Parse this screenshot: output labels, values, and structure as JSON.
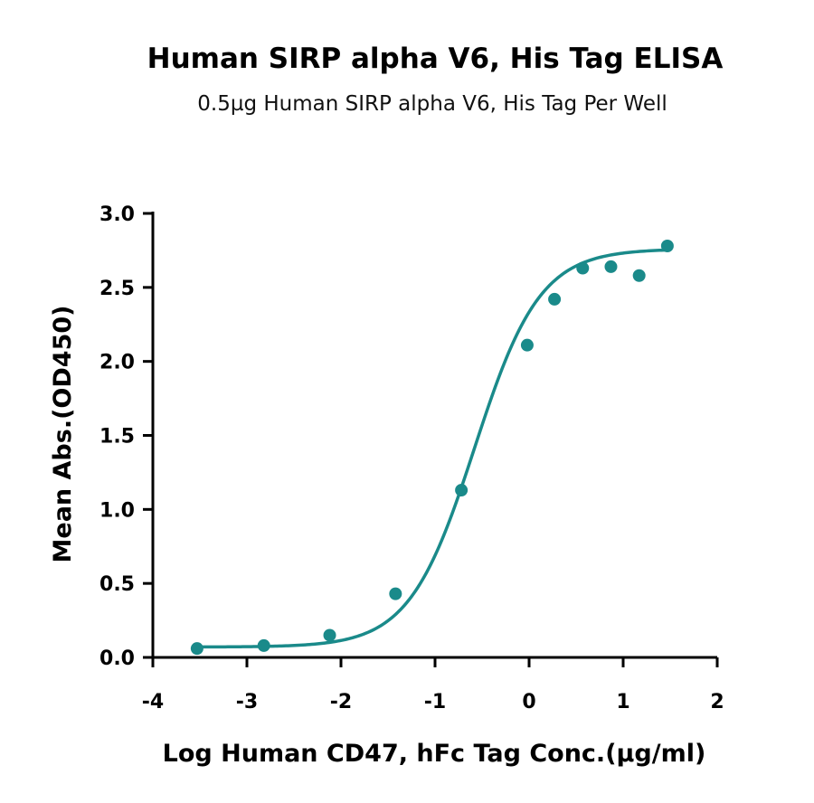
{
  "chart_data": {
    "type": "scatter",
    "title": "Human SIRP alpha V6, His Tag ELISA",
    "subtitle": "0.5µg Human SIRP alpha V6, His Tag Per Well",
    "xlabel": "Log  Human CD47, hFc Tag Conc.(µg/ml)",
    "ylabel": "Mean Abs.(OD450)",
    "xlim": [
      -4,
      2
    ],
    "ylim": [
      0,
      3
    ],
    "x_ticks": [
      -4,
      -3,
      -2,
      -1,
      0,
      1,
      2
    ],
    "y_ticks": [
      0.0,
      0.5,
      1.0,
      1.5,
      2.0,
      2.5,
      3.0
    ],
    "x_tick_labels": [
      "-4",
      "-3",
      "-2",
      "-1",
      "0",
      "1",
      "2"
    ],
    "y_tick_labels": [
      "0.0",
      "0.5",
      "1.0",
      "1.5",
      "2.0",
      "2.5",
      "3.0"
    ],
    "grid": false,
    "color": "#1a8a8a",
    "series": [
      {
        "points": [
          {
            "x": -3.53,
            "y": 0.06
          },
          {
            "x": -2.82,
            "y": 0.08
          },
          {
            "x": -2.12,
            "y": 0.15
          },
          {
            "x": -1.42,
            "y": 0.43
          },
          {
            "x": -0.72,
            "y": 1.13
          },
          {
            "x": -0.02,
            "y": 2.11
          },
          {
            "x": 0.27,
            "y": 2.42
          },
          {
            "x": 0.57,
            "y": 2.63
          },
          {
            "x": 0.87,
            "y": 2.64
          },
          {
            "x": 1.17,
            "y": 2.58
          },
          {
            "x": 1.47,
            "y": 2.78
          }
        ],
        "fit": {
          "model": "4PL",
          "bottom": 0.07,
          "top": 2.76,
          "log_ec50": -0.58,
          "hill_slope": 1.25,
          "x_range": [
            -3.55,
            1.5
          ]
        }
      }
    ]
  }
}
